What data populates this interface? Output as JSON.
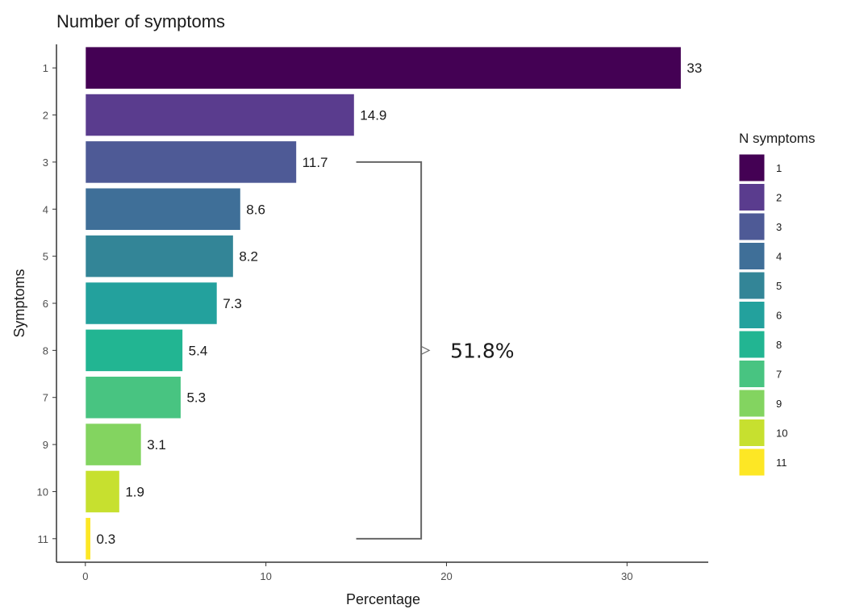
{
  "chart_data": {
    "type": "bar",
    "orientation": "horizontal",
    "title": "Number of symptoms",
    "xlabel": "Percentage",
    "ylabel": "Symptoms",
    "xlim": [
      -1.6,
      34.5
    ],
    "xticks": [
      0,
      10,
      20,
      30
    ],
    "grid": false,
    "legend": {
      "title": "N symptoms",
      "position": "right",
      "items": [
        {
          "label": "1",
          "color": "#440154"
        },
        {
          "label": "2",
          "color": "#5a3c8e"
        },
        {
          "label": "3",
          "color": "#4e5a96"
        },
        {
          "label": "4",
          "color": "#3f6f98"
        },
        {
          "label": "5",
          "color": "#338597"
        },
        {
          "label": "6",
          "color": "#23a19d"
        },
        {
          "label": "8",
          "color": "#22b592"
        },
        {
          "label": "7",
          "color": "#48c481"
        },
        {
          "label": "9",
          "color": "#83d460"
        },
        {
          "label": "10",
          "color": "#c7e02f"
        },
        {
          "label": "11",
          "color": "#fde725"
        }
      ]
    },
    "categories": [
      "1",
      "2",
      "3",
      "4",
      "5",
      "6",
      "8",
      "7",
      "9",
      "10",
      "11"
    ],
    "values": [
      33,
      14.9,
      11.7,
      8.6,
      8.2,
      7.3,
      5.4,
      5.3,
      3.1,
      1.9,
      0.3
    ],
    "data_labels": [
      "33",
      "14.9",
      "11.7",
      "8.6",
      "8.2",
      "7.3",
      "5.4",
      "5.3",
      "3.1",
      "1.9",
      "0.3"
    ],
    "annotation": {
      "type": "bracket",
      "from_category": "3",
      "to_category": "11",
      "text": "51.8%"
    }
  }
}
